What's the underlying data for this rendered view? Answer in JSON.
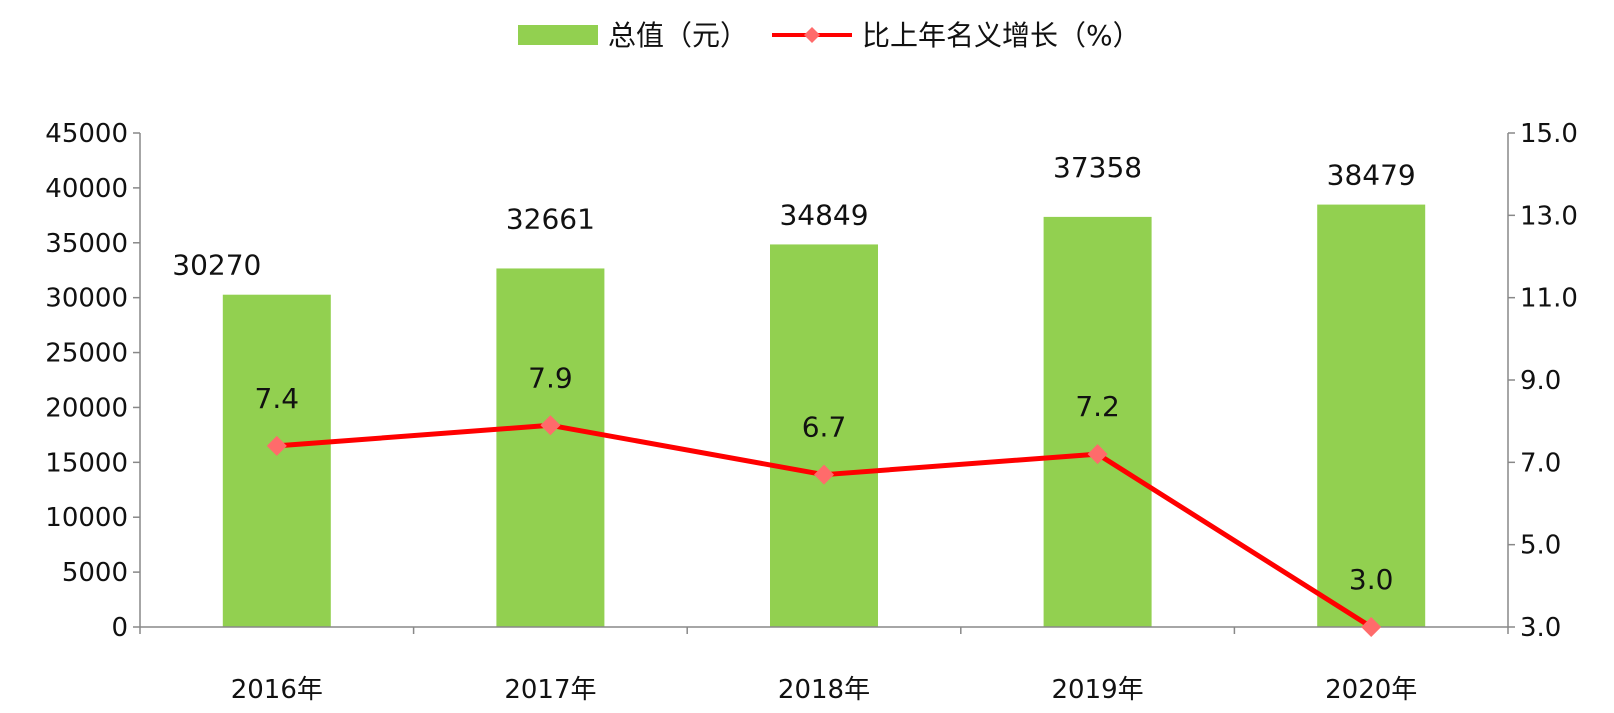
{
  "chart_data": {
    "type": "bar",
    "categories": [
      "2016年",
      "2017年",
      "2018年",
      "2019年",
      "2020年"
    ],
    "series": [
      {
        "name": "总值（元）",
        "type": "bar",
        "axis": "left",
        "values": [
          30270,
          32661,
          34849,
          37358,
          38479
        ],
        "labels": [
          "30270",
          "32661",
          "34849",
          "37358",
          "38479"
        ],
        "color": "#92d050"
      },
      {
        "name": "比上年名义增长（%）",
        "type": "line",
        "axis": "right",
        "values": [
          7.4,
          7.9,
          6.7,
          7.2,
          3.0
        ],
        "labels": [
          "7.4",
          "7.9",
          "6.7",
          "7.2",
          "3.0"
        ],
        "color": "#ff0000",
        "marker_color": "#ff6b6b"
      }
    ],
    "y_left": {
      "ylim": [
        0,
        45000
      ],
      "ticks": [
        "0",
        "5000",
        "10000",
        "15000",
        "20000",
        "25000",
        "30000",
        "35000",
        "40000",
        "45000"
      ]
    },
    "y_right": {
      "ylim": [
        3.0,
        15.0
      ],
      "ticks": [
        "3.0",
        "5.0",
        "7.0",
        "9.0",
        "11.0",
        "13.0",
        "15.0"
      ]
    },
    "grid": false,
    "legend_position": "top-center"
  }
}
